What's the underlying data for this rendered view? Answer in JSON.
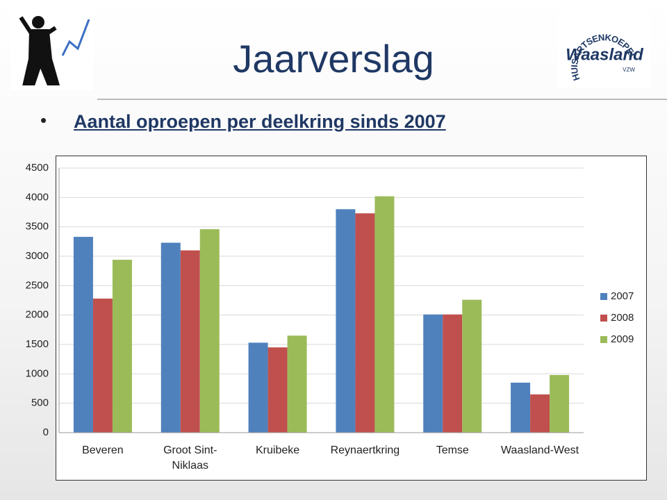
{
  "header": {
    "title": "Jaarverslag",
    "logo_arc_text": "HUISARTSENKOEPEL",
    "logo_name": "Waasland",
    "logo_suffix": "VZW"
  },
  "bullet": "Aantal oproepen per deelkring sinds 2007",
  "chart_data": {
    "type": "bar",
    "categories": [
      "Beveren",
      "Groot Sint-Niklaas",
      "Kruibeke",
      "Reynaertkring",
      "Temse",
      "Waasland-West"
    ],
    "series": [
      {
        "name": "2007",
        "color": "#4f81bd",
        "values": [
          3330,
          3230,
          1530,
          3800,
          2010,
          850
        ]
      },
      {
        "name": "2008",
        "color": "#c0504d",
        "values": [
          2280,
          3100,
          1450,
          3730,
          2010,
          650
        ]
      },
      {
        "name": "2009",
        "color": "#9bbb59",
        "values": [
          2940,
          3460,
          1650,
          4020,
          2260,
          980
        ]
      }
    ],
    "ylim": [
      0,
      4500
    ],
    "yticks": [
      0,
      500,
      1000,
      1500,
      2000,
      2500,
      3000,
      3500,
      4000,
      4500
    ],
    "grid": true,
    "legend": "right"
  }
}
